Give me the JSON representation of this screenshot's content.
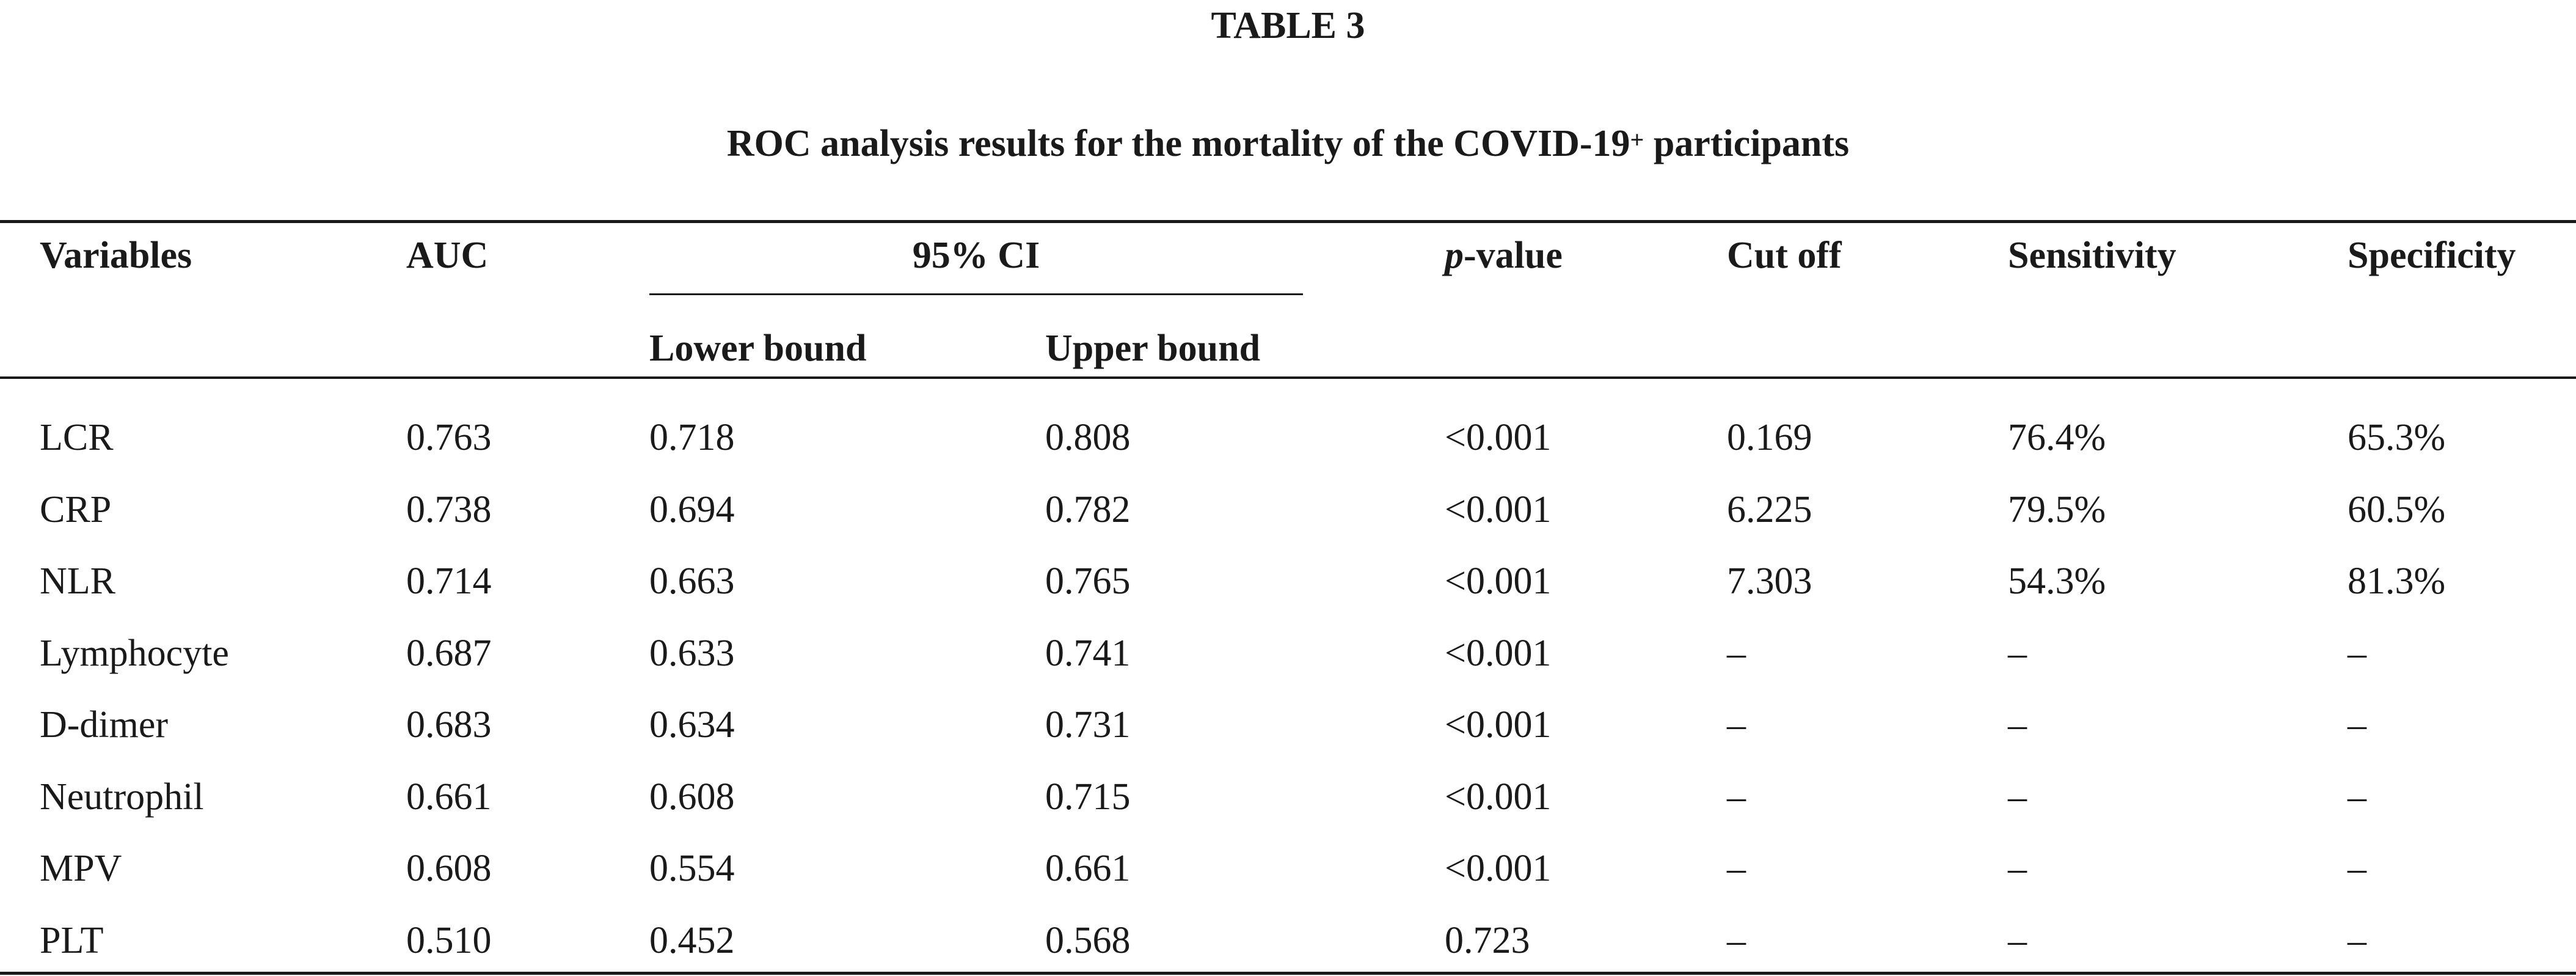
{
  "table": {
    "label": "TABLE 3",
    "caption": "ROC analysis results for the mortality of the COVID-19",
    "caption_superscript": "+",
    "caption_tail": " participants",
    "headers": {
      "variables": "Variables",
      "auc": "AUC",
      "ci": "95% CI",
      "lower": "Lower bound",
      "upper": "Upper bound",
      "p_italic": "p",
      "p_rest": "-value",
      "cutoff": "Cut off",
      "sensitivity": "Sensitivity",
      "specificity": "Specificity"
    },
    "rows": [
      {
        "variable": "LCR",
        "auc": "0.763",
        "lower": "0.718",
        "upper": "0.808",
        "p": "<0.001",
        "cutoff": "0.169",
        "sensitivity": "76.4%",
        "specificity": "65.3%"
      },
      {
        "variable": "CRP",
        "auc": "0.738",
        "lower": "0.694",
        "upper": "0.782",
        "p": "<0.001",
        "cutoff": "6.225",
        "sensitivity": "79.5%",
        "specificity": "60.5%"
      },
      {
        "variable": "NLR",
        "auc": "0.714",
        "lower": "0.663",
        "upper": "0.765",
        "p": "<0.001",
        "cutoff": "7.303",
        "sensitivity": "54.3%",
        "specificity": "81.3%"
      },
      {
        "variable": "Lymphocyte",
        "auc": "0.687",
        "lower": "0.633",
        "upper": "0.741",
        "p": "<0.001",
        "cutoff": "–",
        "sensitivity": "–",
        "specificity": "–"
      },
      {
        "variable": "D-dimer",
        "auc": "0.683",
        "lower": "0.634",
        "upper": "0.731",
        "p": "<0.001",
        "cutoff": "–",
        "sensitivity": "–",
        "specificity": "–"
      },
      {
        "variable": "Neutrophil",
        "auc": "0.661",
        "lower": "0.608",
        "upper": "0.715",
        "p": "<0.001",
        "cutoff": "–",
        "sensitivity": "–",
        "specificity": "–"
      },
      {
        "variable": "MPV",
        "auc": "0.608",
        "lower": "0.554",
        "upper": "0.661",
        "p": "<0.001",
        "cutoff": "–",
        "sensitivity": "–",
        "specificity": "–"
      },
      {
        "variable": "PLT",
        "auc": "0.510",
        "lower": "0.452",
        "upper": "0.568",
        "p": "0.723",
        "cutoff": "–",
        "sensitivity": "–",
        "specificity": "–"
      }
    ]
  }
}
